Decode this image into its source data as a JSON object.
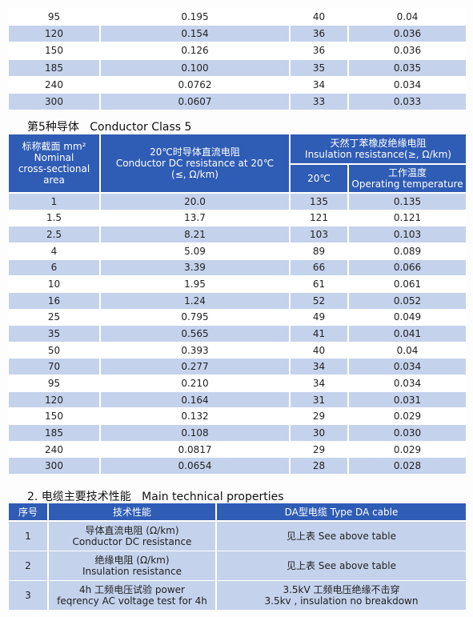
{
  "top_table": {
    "rows": [
      [
        "95",
        "0.195",
        "40",
        "0.04"
      ],
      [
        "120",
        "0.154",
        "36",
        "0.036"
      ],
      [
        "150",
        "0.126",
        "36",
        "0.036"
      ],
      [
        "185",
        "0.100",
        "35",
        "0.035"
      ],
      [
        "240",
        "0.0762",
        "34",
        "0.034"
      ],
      [
        "300",
        "0.0607",
        "33",
        "0.033"
      ]
    ]
  },
  "class5_heading": {
    "cn": "第5种导体",
    "en": "Conductor Class 5"
  },
  "class5_table": {
    "header": {
      "area": [
        "标称截面 mm²",
        "Nominal",
        "cross-sectional",
        "area"
      ],
      "resistance": [
        "20℃时导体直流电阻",
        "Conductor DC resistance at 20℃",
        "(≤, Ω/km)"
      ],
      "insulation": [
        "天然丁苯橡皮绝缘电阻",
        "Insulation resistance(≥, Ω/km)"
      ],
      "insulation_20": [
        "20℃"
      ],
      "insulation_operating": [
        "工作温度",
        "Operating temperature"
      ]
    },
    "rows": [
      [
        "1",
        "20.0",
        "135",
        "0.135"
      ],
      [
        "1.5",
        "13.7",
        "121",
        "0.121"
      ],
      [
        "2.5",
        "8.21",
        "103",
        "0.103"
      ],
      [
        "4",
        "5.09",
        "89",
        "0.089"
      ],
      [
        "6",
        "3.39",
        "66",
        "0.066"
      ],
      [
        "10",
        "1.95",
        "61",
        "0.061"
      ],
      [
        "16",
        "1.24",
        "52",
        "0.052"
      ],
      [
        "25",
        "0.795",
        "49",
        "0.049"
      ],
      [
        "35",
        "0.565",
        "41",
        "0.041"
      ],
      [
        "50",
        "0.393",
        "40",
        "0.04"
      ],
      [
        "70",
        "0.277",
        "34",
        "0.034"
      ],
      [
        "95",
        "0.210",
        "34",
        "0.034"
      ],
      [
        "120",
        "0.164",
        "31",
        "0.031"
      ],
      [
        "150",
        "0.132",
        "29",
        "0.029"
      ],
      [
        "185",
        "0.108",
        "30",
        "0.030"
      ],
      [
        "240",
        "0.0817",
        "29",
        "0.029"
      ],
      [
        "300",
        "0.0654",
        "28",
        "0.028"
      ]
    ]
  },
  "properties_heading": {
    "cn": "2. 电缆主要技术性能",
    "en": "Main technical properties"
  },
  "properties_table": {
    "header": [
      "序号",
      "技术性能",
      "DA型电缆   Type DA cable"
    ],
    "rows": [
      [
        "1",
        [
          "导体直流电阻 (Ω/km)",
          "Conductor DC resistance"
        ],
        [
          "见上表 See above table"
        ]
      ],
      [
        "2",
        [
          "绝缘电阻 (Ω/km)",
          "Insulation resistance"
        ],
        [
          "见上表 See above table"
        ]
      ],
      [
        "3",
        [
          "4h 工频电压试验 power",
          "feqrency AC voltage test for 4h"
        ],
        [
          "3.5kV 工频电压绝缘不击穿",
          "3.5kv , insulation no breakdown"
        ]
      ]
    ]
  }
}
